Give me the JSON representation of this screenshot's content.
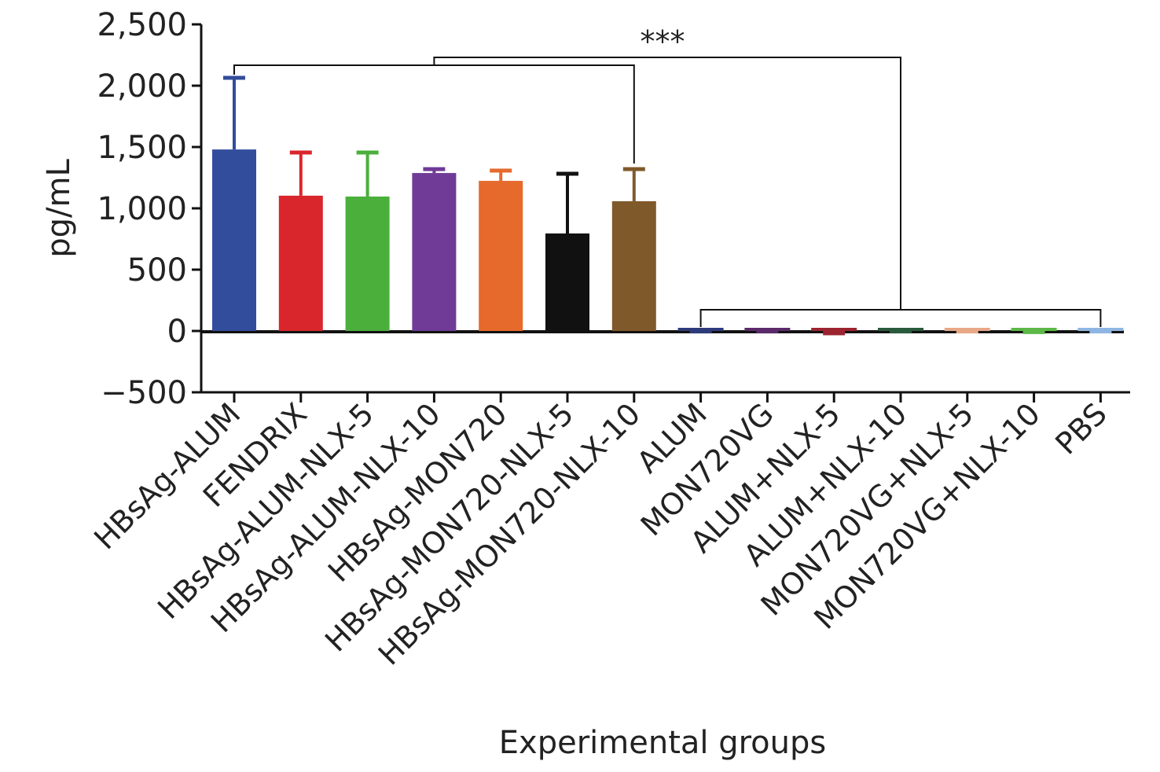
{
  "chart_data": {
    "type": "bar",
    "title": "",
    "xlabel": "Experimental groups",
    "ylabel": "pg/mL",
    "ylim": [
      -500,
      2500
    ],
    "yticks": [
      -500,
      0,
      500,
      1000,
      1500,
      2000,
      2500
    ],
    "ytick_labels": [
      "−500",
      "0",
      "500",
      "1,000",
      "1,500",
      "2,000",
      "2,500"
    ],
    "grid": false,
    "categories": [
      "HBsAg-ALUM",
      "FENDRIX",
      "HBsAg-ALUM-NLX-5",
      "HBsAg-ALUM-NLX-10",
      "HBsAg-MON720",
      "HBsAg-MON720-NLX-5",
      "HBsAg-MON720-NLX-10",
      "ALUM",
      "MON720VG",
      "ALUM+NLX-5",
      "ALUM+NLX-10",
      "MON720VG+NLX-5",
      "MON720VG+NLX-10",
      "PBS"
    ],
    "values": [
      1480,
      1103,
      1096,
      1288,
      1224,
      795,
      1058,
      20,
      15,
      10,
      15,
      15,
      15,
      20
    ],
    "error_upper": [
      2064,
      1455,
      1455,
      1320,
      1308,
      1282,
      1320,
      null,
      null,
      null,
      null,
      null,
      null,
      null
    ],
    "error_lower": [
      null,
      null,
      null,
      null,
      null,
      null,
      null,
      -20,
      -20,
      -35,
      -20,
      -20,
      -25,
      -20
    ],
    "colors": [
      "#324d9b",
      "#d9262c",
      "#4aaf3b",
      "#6f3b97",
      "#e56a2c",
      "#111111",
      "#80592a",
      "#2e3b7a",
      "#5b2a6a",
      "#9b2430",
      "#2a5a3c",
      "#e8a888",
      "#5cb848",
      "#8fb6e2"
    ],
    "annotations": [
      {
        "text": "***",
        "between": [
          "groups 1-7",
          "groups 8-14"
        ]
      }
    ]
  }
}
